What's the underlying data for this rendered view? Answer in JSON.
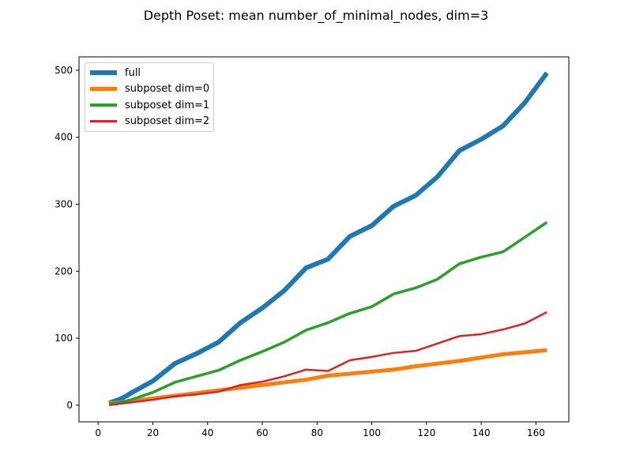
{
  "chart_data": {
    "type": "line",
    "title": "Depth Poset: mean number_of_minimal_nodes, dim=3",
    "xlabel": "",
    "ylabel": "",
    "xlim": [
      -7,
      172
    ],
    "ylim": [
      -25,
      520
    ],
    "xticks": [
      0,
      20,
      40,
      60,
      80,
      100,
      120,
      140,
      160
    ],
    "yticks": [
      0,
      100,
      200,
      300,
      400,
      500
    ],
    "grid": false,
    "legend_position": "upper-left",
    "x": [
      4,
      6,
      8,
      10,
      12,
      20,
      28,
      36,
      44,
      52,
      60,
      68,
      76,
      84,
      92,
      100,
      108,
      116,
      124,
      132,
      140,
      148,
      156,
      164
    ],
    "series": [
      {
        "name": "full",
        "color": "#1f77b4",
        "width": 6,
        "values": [
          3,
          6,
          9,
          13,
          18,
          36,
          62,
          77,
          94,
          123,
          145,
          171,
          205,
          218,
          252,
          268,
          297,
          313,
          341,
          380,
          397,
          417,
          452,
          496
        ]
      },
      {
        "name": "subposet dim=0",
        "color": "#ff7f0e",
        "width": 5,
        "values": [
          3,
          3,
          4,
          5,
          6,
          10,
          14,
          18,
          22,
          26,
          30,
          34,
          38,
          44,
          47,
          50,
          53,
          58,
          62,
          66,
          71,
          76,
          79,
          82
        ]
      },
      {
        "name": "subposet dim=1",
        "color": "#2ca02c",
        "width": 3.5,
        "values": [
          2,
          3,
          4,
          6,
          8,
          19,
          34,
          43,
          52,
          67,
          80,
          94,
          112,
          123,
          137,
          147,
          166,
          175,
          188,
          211,
          221,
          229,
          251,
          273
        ]
      },
      {
        "name": "subposet dim=2",
        "color": "#d62728",
        "width": 2.5,
        "values": [
          0,
          1,
          2,
          3,
          4,
          8,
          13,
          16,
          20,
          30,
          35,
          43,
          53,
          51,
          67,
          72,
          78,
          81,
          92,
          103,
          106,
          113,
          122,
          139
        ]
      }
    ]
  }
}
